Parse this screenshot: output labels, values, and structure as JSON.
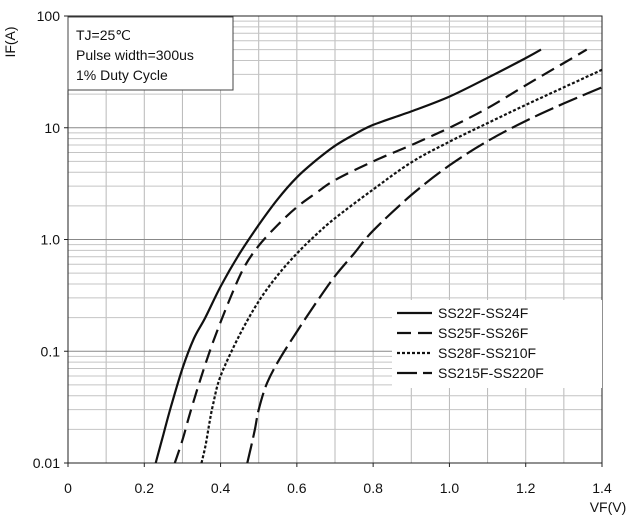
{
  "chart_data": {
    "type": "line",
    "xlabel": "VF(V)",
    "ylabel": "IF(A)",
    "xlim": [
      0,
      1.4
    ],
    "ylim": [
      0.01,
      100
    ],
    "y_scale": "log",
    "grid": true,
    "legend_position": "bottom-right",
    "x_ticks": [
      {
        "value": 0,
        "label": "0"
      },
      {
        "value": 0.2,
        "label": "0.2"
      },
      {
        "value": 0.4,
        "label": "0.4"
      },
      {
        "value": 0.6,
        "label": "0.6"
      },
      {
        "value": 0.8,
        "label": "0.8"
      },
      {
        "value": 1.0,
        "label": "1.0"
      },
      {
        "value": 1.2,
        "label": "1.2"
      },
      {
        "value": 1.4,
        "label": "1.4"
      }
    ],
    "y_ticks": [
      {
        "value": 0.01,
        "label": "0.01"
      },
      {
        "value": 0.1,
        "label": "0.1"
      },
      {
        "value": 1,
        "label": "1.0"
      },
      {
        "value": 10,
        "label": "10"
      },
      {
        "value": 100,
        "label": "100"
      }
    ],
    "annotations": [
      "TJ=25℃",
      "Pulse width=300us",
      "1% Duty Cycle"
    ],
    "series": [
      {
        "name": "SS22F-SS24F",
        "dash": "solid",
        "x": [
          0.23,
          0.25,
          0.27,
          0.3,
          0.33,
          0.36,
          0.4,
          0.45,
          0.5,
          0.55,
          0.6,
          0.65,
          0.7,
          0.75,
          0.8,
          0.9,
          1.0,
          1.1,
          1.2,
          1.24
        ],
        "y": [
          0.01,
          0.018,
          0.032,
          0.07,
          0.13,
          0.2,
          0.38,
          0.75,
          1.35,
          2.3,
          3.6,
          5.1,
          6.9,
          8.7,
          10.6,
          14.0,
          19.0,
          28.0,
          42.0,
          50.0
        ]
      },
      {
        "name": "SS25F-SS26F",
        "dash": "long-dash",
        "x": [
          0.28,
          0.3,
          0.32,
          0.35,
          0.38,
          0.42,
          0.46,
          0.5,
          0.55,
          0.6,
          0.65,
          0.7,
          0.8,
          0.9,
          1.0,
          1.1,
          1.2,
          1.3,
          1.36
        ],
        "y": [
          0.01,
          0.016,
          0.028,
          0.06,
          0.12,
          0.27,
          0.55,
          0.88,
          1.35,
          1.95,
          2.6,
          3.4,
          5.0,
          7.0,
          10.0,
          15.0,
          24.0,
          38.0,
          50.0
        ]
      },
      {
        "name": "SS28F-SS210F",
        "dash": "dotted",
        "x": [
          0.35,
          0.36,
          0.37,
          0.38,
          0.4,
          0.45,
          0.5,
          0.55,
          0.6,
          0.65,
          0.7,
          0.8,
          0.9,
          1.0,
          1.1,
          1.2,
          1.3,
          1.4
        ],
        "y": [
          0.01,
          0.014,
          0.022,
          0.033,
          0.06,
          0.14,
          0.28,
          0.48,
          0.75,
          1.1,
          1.55,
          2.8,
          4.9,
          7.5,
          11.0,
          16.0,
          23.0,
          33.0
        ]
      },
      {
        "name": "SS215F-SS220F",
        "dash": "dash-dot",
        "x": [
          0.47,
          0.48,
          0.49,
          0.5,
          0.52,
          0.55,
          0.6,
          0.65,
          0.7,
          0.75,
          0.8,
          0.9,
          1.0,
          1.1,
          1.2,
          1.3,
          1.4
        ],
        "y": [
          0.01,
          0.014,
          0.02,
          0.03,
          0.05,
          0.08,
          0.15,
          0.27,
          0.47,
          0.75,
          1.2,
          2.5,
          4.6,
          7.6,
          11.5,
          16.5,
          23.0
        ]
      }
    ]
  }
}
